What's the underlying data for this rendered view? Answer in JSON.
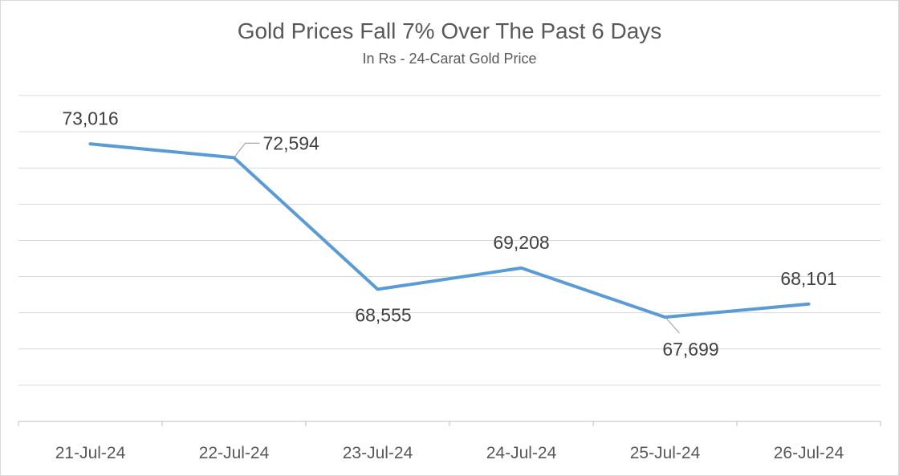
{
  "chart_data": {
    "type": "line",
    "title": "Gold Prices Fall 7% Over The Past 6 Days",
    "subtitle": "In Rs - 24-Carat Gold Price",
    "categories": [
      "21-Jul-24",
      "22-Jul-24",
      "23-Jul-24",
      "24-Jul-24",
      "25-Jul-24",
      "26-Jul-24"
    ],
    "series": [
      {
        "values": [
          73016,
          72594,
          68555,
          69208,
          67699,
          68101
        ],
        "labels": [
          "73,016",
          "72,594",
          "68,555",
          "69,208",
          "67,699",
          "68,101"
        ],
        "color": "#5b9bd5"
      }
    ],
    "ylim": [
      64500,
      74500
    ],
    "grid": true,
    "legend": "none"
  }
}
